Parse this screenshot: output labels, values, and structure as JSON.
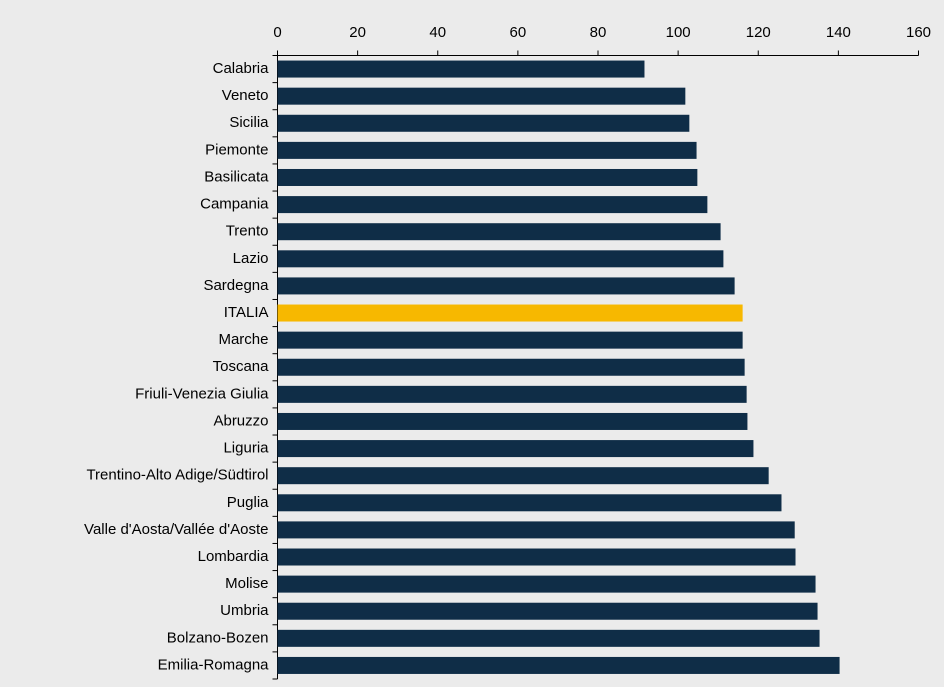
{
  "chart_data": {
    "type": "hbar",
    "categories": [
      "Calabria",
      "Veneto",
      "Sicilia",
      "Piemonte",
      "Basilicata",
      "Campania",
      "Trento",
      "Lazio",
      "Sardegna",
      "ITALIA",
      "Marche",
      "Toscana",
      "Friuli-Venezia Giulia",
      "Abruzzo",
      "Liguria",
      "Trentino-Alto Adige/Südtirol",
      "Puglia",
      "Valle d'Aosta/Vallée d'Aoste",
      "Lombardia",
      "Molise",
      "Umbria",
      "Bolzano-Bozen",
      "Emilia-Romagna"
    ],
    "values": [
      91.6,
      101.8,
      102.8,
      104.6,
      104.8,
      107.3,
      110.6,
      111.3,
      114.1,
      116.1,
      116.1,
      116.6,
      117.1,
      117.3,
      118.8,
      122.6,
      125.8,
      129.1,
      129.3,
      134.3,
      134.8,
      135.3,
      140.3
    ],
    "colors": [
      "#0f2d47",
      "#0f2d47",
      "#0f2d47",
      "#0f2d47",
      "#0f2d47",
      "#0f2d47",
      "#0f2d47",
      "#0f2d47",
      "#0f2d47",
      "#f7b800",
      "#0f2d47",
      "#0f2d47",
      "#0f2d47",
      "#0f2d47",
      "#0f2d47",
      "#0f2d47",
      "#0f2d47",
      "#0f2d47",
      "#0f2d47",
      "#0f2d47",
      "#0f2d47",
      "#0f2d47",
      "#0f2d47"
    ],
    "xlim": [
      0,
      160
    ],
    "xticks": [
      0,
      20,
      40,
      60,
      80,
      100,
      120,
      140,
      160
    ]
  }
}
